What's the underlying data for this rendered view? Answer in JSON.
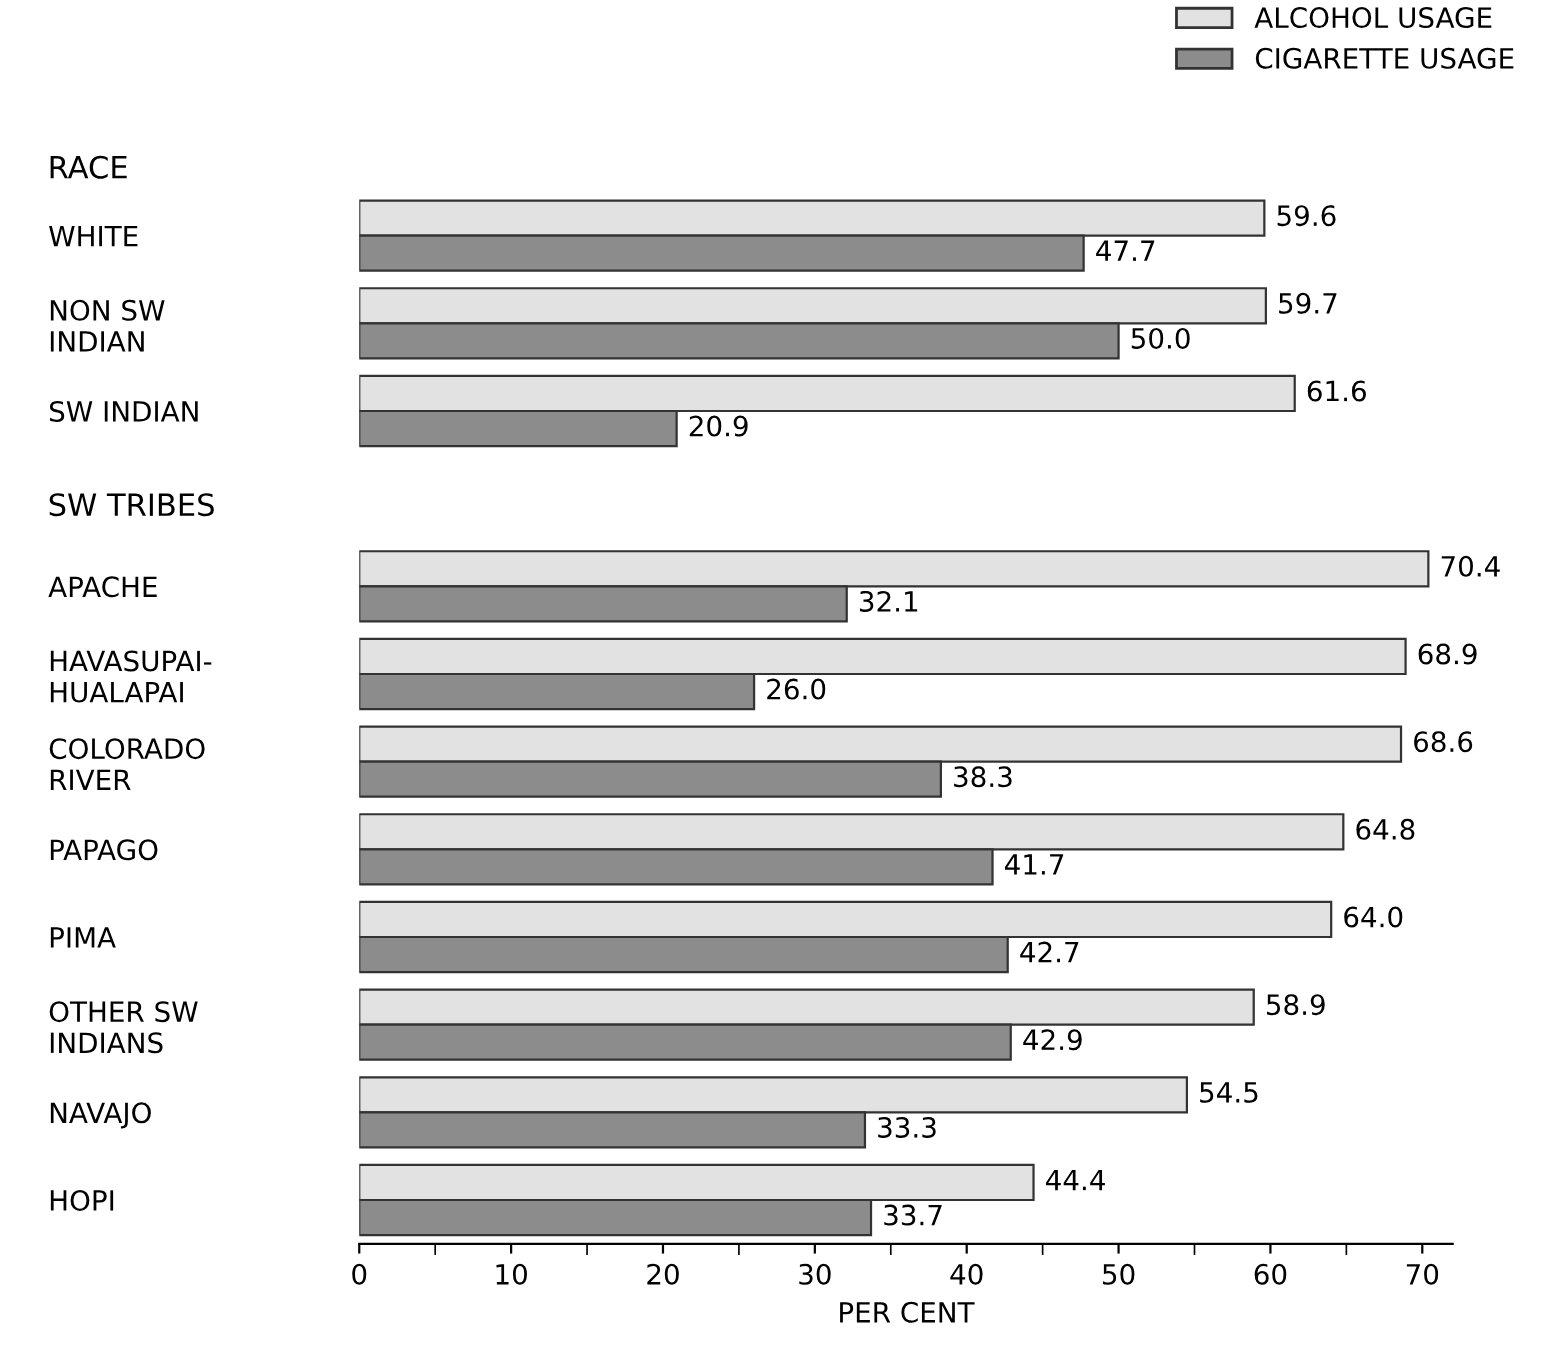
{
  "chart_data": {
    "type": "bar",
    "orientation": "horizontal",
    "xlabel": "PER CENT",
    "categories": [
      "WHITE",
      "NON SW\nINDIAN",
      "SW INDIAN",
      null,
      "APACHE",
      "HAVASUPAI-\nHUALAPAI",
      "COLORADO\nRIVER",
      "PAPAGO",
      "PIMA",
      "OTHER SW\nINDIANS",
      "NAVAJO",
      "HOPI"
    ],
    "series": [
      {
        "name": "ALCOHOL USAGE",
        "color": "#e2e2e2",
        "values": [
          59.6,
          59.7,
          61.6,
          null,
          70.4,
          68.9,
          68.6,
          64.8,
          64.0,
          58.9,
          54.5,
          44.4
        ],
        "value_labels": [
          "59.6",
          "59.7",
          "61.6",
          null,
          "70.4",
          "68.9",
          "68.6",
          "64.8",
          "64.0",
          "58.9",
          "54.5",
          "44.4"
        ]
      },
      {
        "name": "CIGARETTE USAGE",
        "color": "#8c8c8c",
        "values": [
          47.7,
          50.0,
          20.9,
          null,
          32.1,
          26.0,
          38.3,
          41.7,
          42.7,
          42.9,
          33.3,
          33.7
        ],
        "value_labels": [
          "47.7",
          "50.0",
          "20.9",
          null,
          "32.1",
          "26.0",
          "38.3",
          "41.7",
          "42.7",
          "42.9",
          "33.3",
          "33.7"
        ]
      }
    ],
    "annotations": [
      "RACE",
      "SW TRIBES"
    ],
    "xlim": [
      0,
      72
    ],
    "xticks": [
      0,
      {
        "value": 5,
        "label": null
      },
      10,
      {
        "value": 15,
        "label": null
      },
      20,
      {
        "value": 25,
        "label": null
      },
      30,
      {
        "value": 35,
        "label": null
      },
      40,
      {
        "value": 45,
        "label": null
      },
      50,
      {
        "value": 55,
        "label": null
      },
      60,
      {
        "value": 65,
        "label": null
      },
      70
    ],
    "grid": false,
    "legend": "top right"
  }
}
